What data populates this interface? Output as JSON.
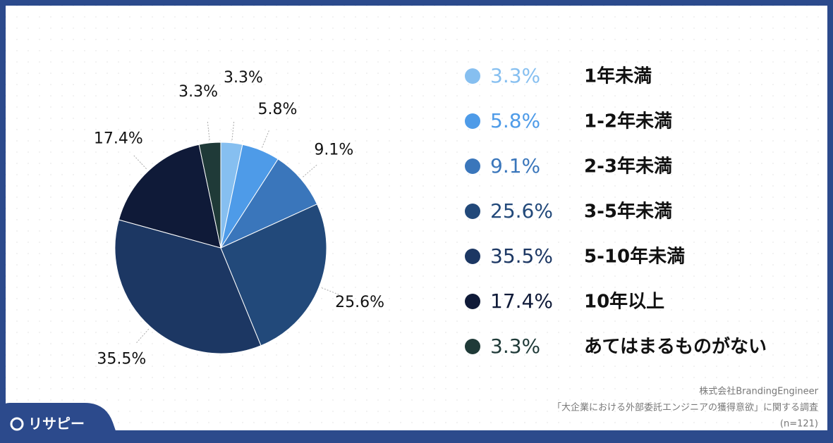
{
  "chart_data": {
    "type": "pie",
    "categories": [
      "1年未満",
      "1-2年未満",
      "2-3年未満",
      "3-5年未満",
      "5-10年未満",
      "10年以上",
      "あてはまるものがない"
    ],
    "values": [
      3.3,
      5.8,
      9.1,
      25.6,
      35.5,
      17.4,
      3.3
    ],
    "value_labels": [
      "3.3%",
      "5.8%",
      "9.1%",
      "25.6%",
      "35.5%",
      "17.4%",
      "3.3%"
    ],
    "colors": [
      "#86bff0",
      "#4e9be8",
      "#3a76bb",
      "#22497a",
      "#1c3763",
      "#0f1a38",
      "#1f3a38"
    ],
    "source": [
      "株式会社BrandingEngineer",
      "「大企業における外部委託エンジニアの獲得意欲」に関する調査",
      "(n=121)"
    ]
  },
  "logo": "リサピー"
}
